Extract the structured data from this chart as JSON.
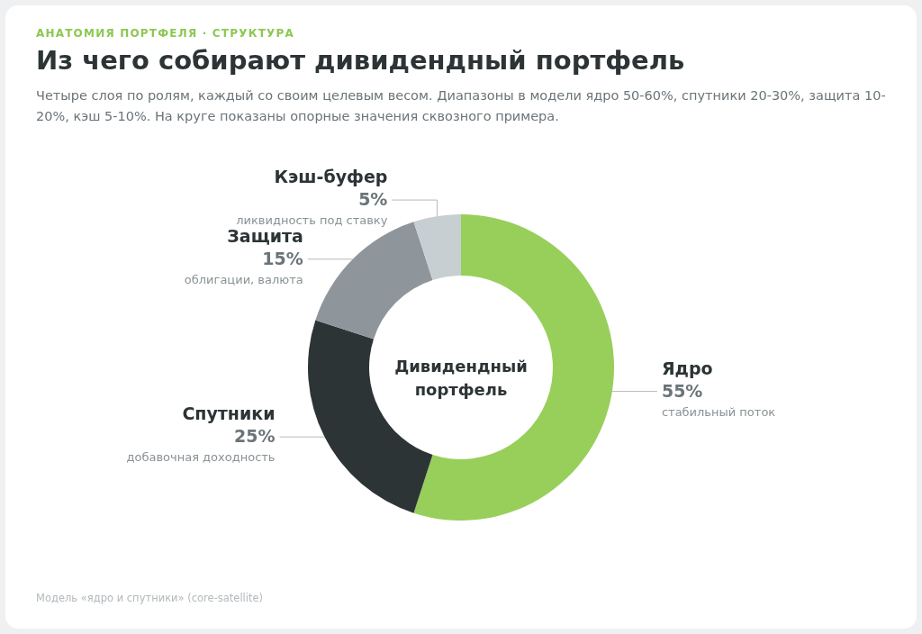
{
  "chart_data": {
    "type": "donut",
    "title": "Из чего собирают дивидендный портфель",
    "subtitle": "Четыре слоя по ролям, каждый со своим целевым весом. Диапазоны в модели ядро 50-60%, спутники 20-30%, защита 10-20%, кэш 5-10%. На круге показаны опорные значения сквозного примера.",
    "categories": [
      "Ядро",
      "Спутники",
      "Защита",
      "Кэш-буфер"
    ],
    "values": [
      55,
      25,
      15,
      5
    ],
    "colors": [
      "#97cf5a",
      "#2d3436",
      "#8e959b",
      "#c8cfd3"
    ],
    "value_labels": [
      "55%",
      "25%",
      "15%",
      "5%"
    ],
    "annotations": [
      "АНАТОМИЯ ПОРТФЕЛЯ · СТРУКТУРА",
      "Дивидендный портфель",
      {
        "text": "стабильный поток",
        "x": "Ядро"
      },
      {
        "text": "добавочная доходность",
        "x": "Спутники"
      },
      {
        "text": "облигации, валюта",
        "x": "Защита"
      },
      {
        "text": "ликвидность под ставку",
        "x": "Кэш-буфер"
      },
      "Модель «ядро и спутники» (core-satellite)"
    ]
  }
}
